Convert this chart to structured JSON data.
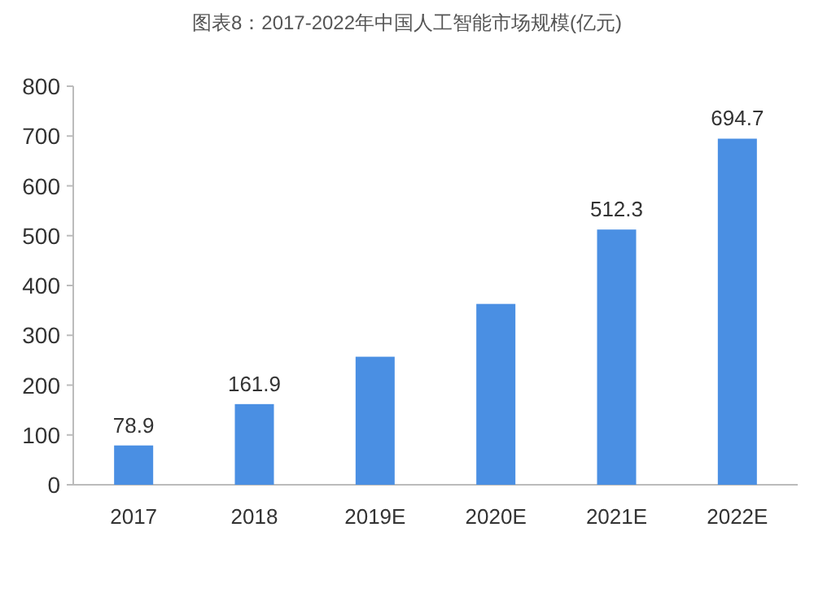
{
  "chart_data": {
    "type": "bar",
    "title": "图表8：2017-2022年中国人工智能市场规模(亿元)",
    "categories": [
      "2017",
      "2018",
      "2019E",
      "2020E",
      "2021E",
      "2022E"
    ],
    "values": [
      78.9,
      161.9,
      257,
      363,
      512.3,
      694.7
    ],
    "value_labels": [
      "78.9",
      "161.9",
      null,
      null,
      "512.3",
      "694.7"
    ],
    "color": "#4a8fe3",
    "ylim": [
      0,
      800
    ],
    "yticks": [
      0,
      100,
      200,
      300,
      400,
      500,
      600,
      700,
      800
    ],
    "grid": false
  }
}
